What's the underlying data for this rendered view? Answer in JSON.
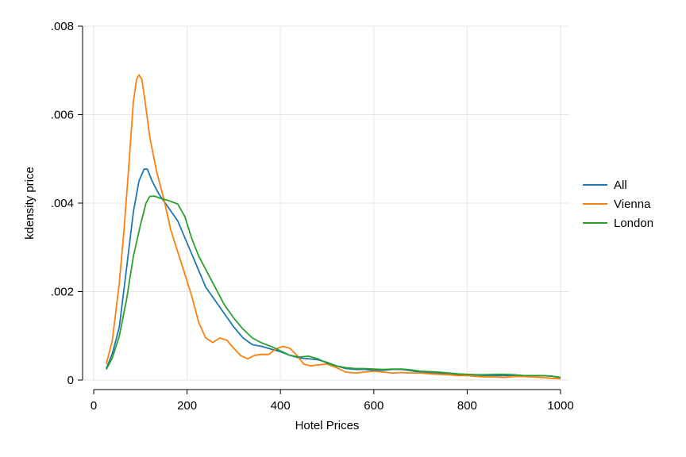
{
  "chart_data": {
    "type": "line",
    "title": "",
    "xlabel": "Hotel Prices",
    "ylabel": "kdensity price",
    "xlim": [
      0,
      1000
    ],
    "ylim": [
      0,
      0.008
    ],
    "xticks": [
      {
        "value": 0,
        "label": "0"
      },
      {
        "value": 200,
        "label": "200"
      },
      {
        "value": 400,
        "label": "400"
      },
      {
        "value": 600,
        "label": "600"
      },
      {
        "value": 800,
        "label": "800"
      },
      {
        "value": 1000,
        "label": "1000"
      }
    ],
    "yticks": [
      {
        "value": 0,
        "label": "0"
      },
      {
        "value": 0.002,
        "label": ".002"
      },
      {
        "value": 0.004,
        "label": ".004"
      },
      {
        "value": 0.006,
        "label": ".006"
      },
      {
        "value": 0.008,
        "label": ".008"
      }
    ],
    "grid": true,
    "legend_position": "right",
    "series": [
      {
        "name": "All",
        "color": "#1f77b4",
        "points": [
          [
            27,
            0.00026
          ],
          [
            40,
            0.0006
          ],
          [
            55,
            0.0012
          ],
          [
            70,
            0.0025
          ],
          [
            85,
            0.0038
          ],
          [
            97,
            0.0045
          ],
          [
            108,
            0.00477
          ],
          [
            115,
            0.00477
          ],
          [
            125,
            0.0045
          ],
          [
            140,
            0.0042
          ],
          [
            160,
            0.0039
          ],
          [
            180,
            0.0036
          ],
          [
            200,
            0.0031
          ],
          [
            220,
            0.0026
          ],
          [
            240,
            0.0021
          ],
          [
            260,
            0.0018
          ],
          [
            280,
            0.0015
          ],
          [
            300,
            0.0012
          ],
          [
            320,
            0.00095
          ],
          [
            340,
            0.0008
          ],
          [
            360,
            0.00076
          ],
          [
            380,
            0.0007
          ],
          [
            400,
            0.00064
          ],
          [
            420,
            0.00056
          ],
          [
            440,
            0.0005
          ],
          [
            460,
            0.00048
          ],
          [
            480,
            0.00046
          ],
          [
            500,
            0.0004
          ],
          [
            520,
            0.00032
          ],
          [
            540,
            0.00026
          ],
          [
            560,
            0.00024
          ],
          [
            580,
            0.00024
          ],
          [
            600,
            0.00022
          ],
          [
            620,
            0.00022
          ],
          [
            640,
            0.00024
          ],
          [
            660,
            0.00024
          ],
          [
            680,
            0.00021
          ],
          [
            700,
            0.00018
          ],
          [
            720,
            0.00017
          ],
          [
            740,
            0.00016
          ],
          [
            760,
            0.00015
          ],
          [
            780,
            0.00013
          ],
          [
            800,
            0.00012
          ],
          [
            820,
            0.00011
          ],
          [
            840,
            0.0001
          ],
          [
            860,
            0.0001
          ],
          [
            880,
            0.0001
          ],
          [
            900,
            0.0001
          ],
          [
            920,
            0.0001
          ],
          [
            940,
            0.0001
          ],
          [
            960,
            0.0001
          ],
          [
            980,
            9e-05
          ],
          [
            1000,
            6e-05
          ]
        ]
      },
      {
        "name": "Vienna",
        "color": "#ff7f0e",
        "points": [
          [
            27,
            0.00036
          ],
          [
            40,
            0.0009
          ],
          [
            55,
            0.0022
          ],
          [
            65,
            0.0034
          ],
          [
            75,
            0.0048
          ],
          [
            85,
            0.0063
          ],
          [
            92,
            0.0068
          ],
          [
            97,
            0.0069
          ],
          [
            103,
            0.0068
          ],
          [
            110,
            0.0063
          ],
          [
            120,
            0.0055
          ],
          [
            135,
            0.0047
          ],
          [
            150,
            0.0041
          ],
          [
            165,
            0.0034
          ],
          [
            180,
            0.0029
          ],
          [
            195,
            0.0024
          ],
          [
            210,
            0.0019
          ],
          [
            225,
            0.0013
          ],
          [
            240,
            0.00095
          ],
          [
            255,
            0.00085
          ],
          [
            270,
            0.00095
          ],
          [
            285,
            0.0009
          ],
          [
            300,
            0.00072
          ],
          [
            315,
            0.00055
          ],
          [
            330,
            0.00048
          ],
          [
            345,
            0.00056
          ],
          [
            360,
            0.00058
          ],
          [
            375,
            0.00058
          ],
          [
            390,
            0.0007
          ],
          [
            405,
            0.00076
          ],
          [
            420,
            0.00072
          ],
          [
            435,
            0.00056
          ],
          [
            450,
            0.00036
          ],
          [
            465,
            0.00032
          ],
          [
            480,
            0.00034
          ],
          [
            500,
            0.00036
          ],
          [
            520,
            0.00028
          ],
          [
            540,
            0.00018
          ],
          [
            560,
            0.00016
          ],
          [
            580,
            0.00018
          ],
          [
            600,
            0.0002
          ],
          [
            620,
            0.00018
          ],
          [
            640,
            0.00016
          ],
          [
            660,
            0.00017
          ],
          [
            680,
            0.00016
          ],
          [
            700,
            0.00016
          ],
          [
            720,
            0.00014
          ],
          [
            740,
            0.00013
          ],
          [
            760,
            0.00012
          ],
          [
            780,
            0.0001
          ],
          [
            800,
            0.0001
          ],
          [
            820,
            8e-05
          ],
          [
            840,
            7e-05
          ],
          [
            860,
            7e-05
          ],
          [
            880,
            6e-05
          ],
          [
            900,
            8e-05
          ],
          [
            920,
            8e-05
          ],
          [
            940,
            7e-05
          ],
          [
            960,
            6e-05
          ],
          [
            980,
            4e-05
          ],
          [
            1000,
            3e-05
          ]
        ]
      },
      {
        "name": "London",
        "color": "#2ca02c",
        "points": [
          [
            27,
            0.00024
          ],
          [
            40,
            0.0005
          ],
          [
            55,
            0.001
          ],
          [
            70,
            0.0018
          ],
          [
            85,
            0.0028
          ],
          [
            100,
            0.0035
          ],
          [
            112,
            0.004
          ],
          [
            120,
            0.00415
          ],
          [
            130,
            0.00416
          ],
          [
            145,
            0.0041
          ],
          [
            160,
            0.00406
          ],
          [
            180,
            0.00398
          ],
          [
            195,
            0.0037
          ],
          [
            210,
            0.0032
          ],
          [
            225,
            0.0028
          ],
          [
            240,
            0.0025
          ],
          [
            260,
            0.0021
          ],
          [
            280,
            0.0017
          ],
          [
            300,
            0.0014
          ],
          [
            320,
            0.00115
          ],
          [
            340,
            0.00095
          ],
          [
            360,
            0.00084
          ],
          [
            380,
            0.00076
          ],
          [
            400,
            0.00066
          ],
          [
            420,
            0.00056
          ],
          [
            440,
            0.00052
          ],
          [
            460,
            0.00054
          ],
          [
            480,
            0.00048
          ],
          [
            500,
            0.00038
          ],
          [
            520,
            0.00032
          ],
          [
            540,
            0.00028
          ],
          [
            560,
            0.00026
          ],
          [
            580,
            0.00026
          ],
          [
            600,
            0.00025
          ],
          [
            620,
            0.00024
          ],
          [
            640,
            0.00025
          ],
          [
            660,
            0.00025
          ],
          [
            680,
            0.00023
          ],
          [
            700,
            0.0002
          ],
          [
            720,
            0.00019
          ],
          [
            740,
            0.00018
          ],
          [
            760,
            0.00016
          ],
          [
            780,
            0.00014
          ],
          [
            800,
            0.00013
          ],
          [
            820,
            0.00012
          ],
          [
            840,
            0.00012
          ],
          [
            860,
            0.00013
          ],
          [
            880,
            0.00013
          ],
          [
            900,
            0.00012
          ],
          [
            920,
            0.0001
          ],
          [
            940,
            0.0001
          ],
          [
            960,
            0.0001
          ],
          [
            980,
            9e-05
          ],
          [
            1000,
            6e-05
          ]
        ]
      }
    ]
  }
}
